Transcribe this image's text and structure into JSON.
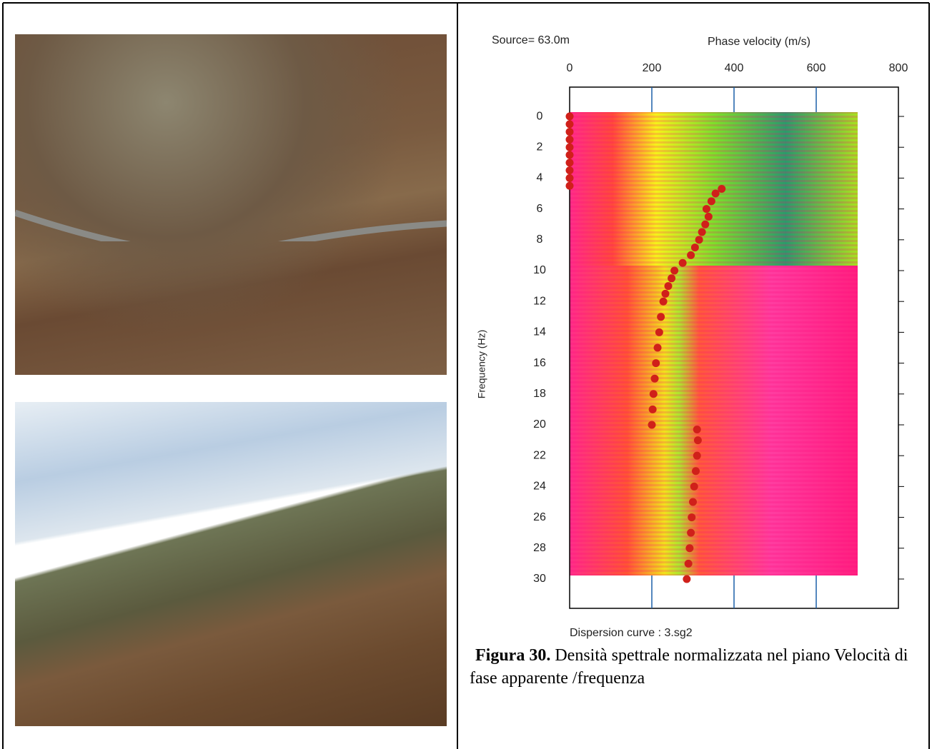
{
  "document": {
    "caption_label": "Figura 30.",
    "caption_text": "Densità spettrale normalizzata nel piano Velocità di fase apparente /frequenza"
  },
  "chart_data": {
    "type": "scatter",
    "annotation": "Source= 63.0m",
    "xlabel": "Phase velocity (m/s)",
    "ylabel": "Frequency (Hz)",
    "footnote": "Dispersion curve : 3.sg2",
    "xlim": [
      0,
      800
    ],
    "xticks": [
      0,
      200,
      400,
      600,
      800
    ],
    "ylim": [
      -1.9,
      31.9
    ],
    "yticks": [
      0,
      2,
      4,
      6,
      8,
      10,
      12,
      14,
      16,
      18,
      20,
      22,
      24,
      26,
      28,
      30
    ],
    "color": "#d0201a",
    "x": [
      0,
      0,
      0,
      0,
      0,
      0,
      0,
      0,
      0,
      0,
      370,
      355,
      345,
      333,
      338,
      330,
      322,
      315,
      305,
      295,
      275,
      255,
      248,
      240,
      233,
      228,
      222,
      218,
      214,
      210,
      207,
      204,
      202,
      200,
      310,
      312,
      310,
      307,
      303,
      300,
      297,
      295,
      292,
      289,
      285
    ],
    "values": [
      0,
      0.5,
      1,
      1.5,
      2,
      2.5,
      3,
      3.5,
      4,
      4.5,
      4.7,
      5,
      5.5,
      6,
      6.5,
      7,
      7.5,
      8,
      8.5,
      9,
      9.5,
      10,
      10.5,
      11,
      11.5,
      12,
      13,
      14,
      15,
      16,
      17,
      18,
      19,
      20,
      20.3,
      21,
      22,
      23,
      24,
      25,
      26,
      27,
      28,
      29,
      30
    ]
  }
}
